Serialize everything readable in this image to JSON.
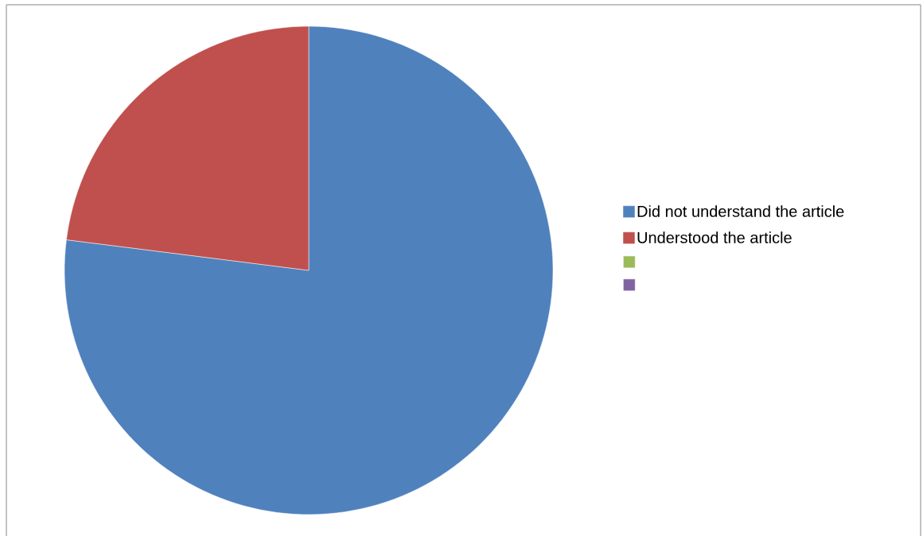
{
  "chart_data": {
    "type": "pie",
    "categories": [
      "Did not understand the article",
      "Understood the article",
      null,
      null
    ],
    "values": [
      77,
      23,
      0,
      0
    ],
    "colors": [
      "#4f81bd",
      "#c0504d",
      "#9bbb59",
      "#8064a2"
    ],
    "legend": "right"
  }
}
